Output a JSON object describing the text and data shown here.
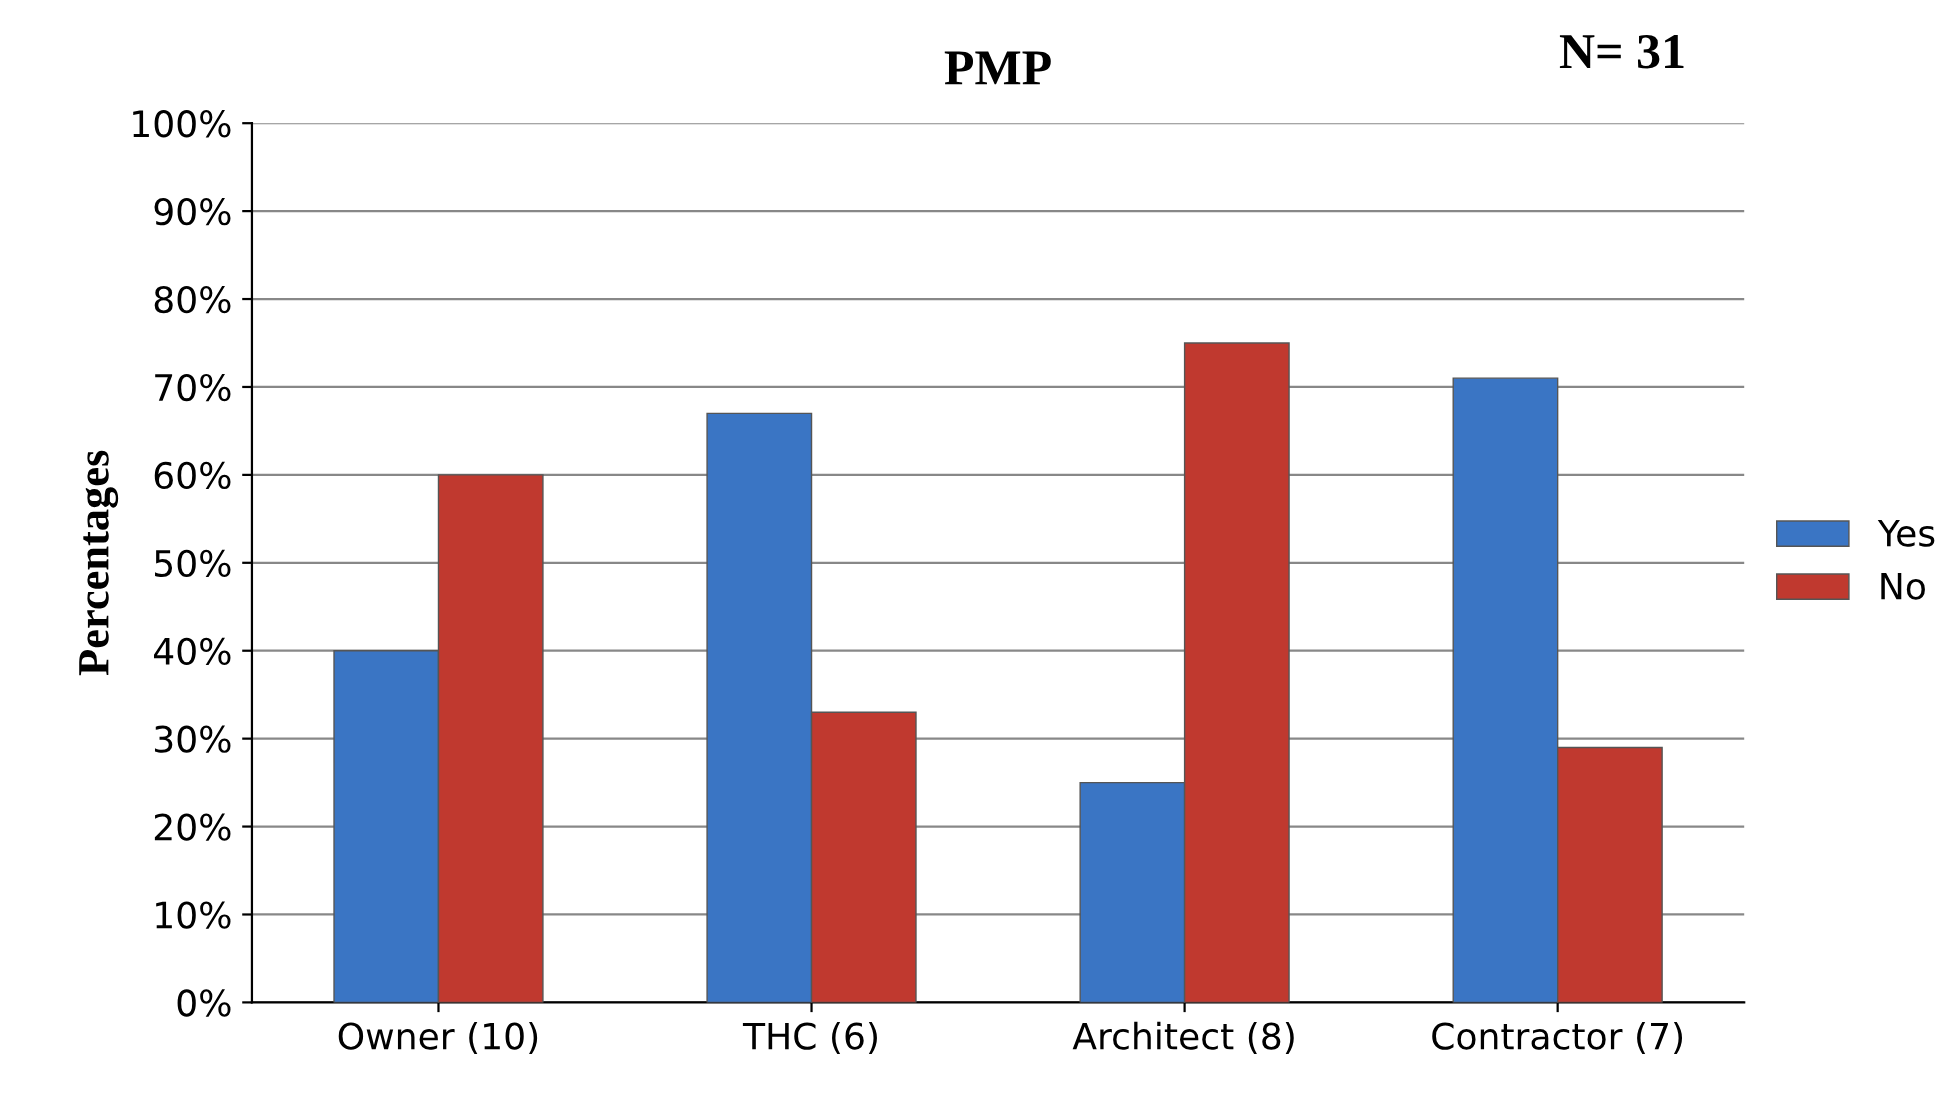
{
  "chart_data": {
    "type": "bar",
    "title": "PMP",
    "ylabel": "Percentages",
    "annotations": [
      "N= 31"
    ],
    "categories": [
      "Owner (10)",
      "THC (6)",
      "Architect (8)",
      "Contractor (7)"
    ],
    "series": [
      {
        "name": "Yes",
        "color": "#3a75c4",
        "values": [
          40,
          67,
          25,
          71
        ]
      },
      {
        "name": "No",
        "color": "#c0392f",
        "values": [
          60,
          33,
          75,
          29
        ]
      }
    ],
    "ylim": [
      0,
      100
    ],
    "yticks": [
      {
        "value": 0,
        "label": "0%"
      },
      {
        "value": 10,
        "label": "10%"
      },
      {
        "value": 20,
        "label": "20%"
      },
      {
        "value": 30,
        "label": "30%"
      },
      {
        "value": 40,
        "label": "40%"
      },
      {
        "value": 50,
        "label": "50%"
      },
      {
        "value": 60,
        "label": "60%"
      },
      {
        "value": 70,
        "label": "70%"
      },
      {
        "value": 80,
        "label": "80%"
      },
      {
        "value": 90,
        "label": "90%"
      },
      {
        "value": 100,
        "label": "100%"
      }
    ],
    "grid": "y",
    "legend": "right"
  }
}
